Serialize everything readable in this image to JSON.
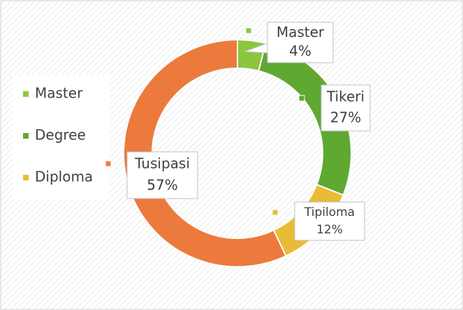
{
  "chart_data": {
    "type": "donut",
    "categories": [
      "Master",
      "Degree",
      "Diploma",
      null
    ],
    "label_names": [
      "Master",
      "Tikeri",
      "Tipiloma",
      "Tusipasi"
    ],
    "values": [
      4,
      27,
      12,
      57
    ],
    "value_labels": [
      "4%",
      "27%",
      "12%",
      "57%"
    ],
    "colors": [
      "#8cc63e",
      "#5fa832",
      "#e8bc35",
      "#ec7a3c"
    ],
    "legend": "left"
  }
}
